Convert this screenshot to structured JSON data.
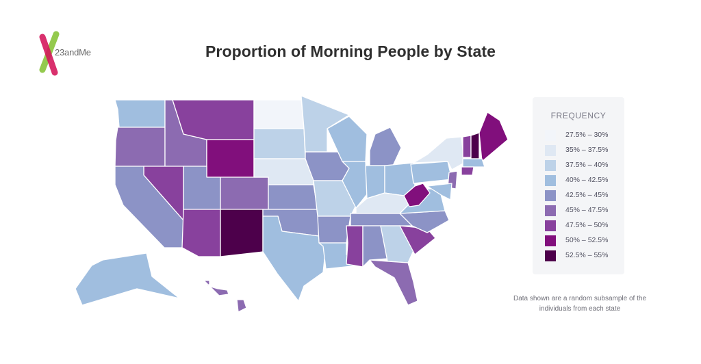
{
  "brand": {
    "name": "23andMe",
    "colors": {
      "green": "#8cc63f",
      "pink": "#d4145a"
    }
  },
  "title": "Proportion of Morning People by State",
  "legend": {
    "title": "FREQUENCY",
    "bins": [
      {
        "label": "27.5% – 30%",
        "color": "#f2f5fa"
      },
      {
        "label": "35% – 37.5%",
        "color": "#dfe8f3"
      },
      {
        "label": "37.5% – 40%",
        "color": "#bdd2e8"
      },
      {
        "label": "40% – 42.5%",
        "color": "#a0bedf"
      },
      {
        "label": "42.5% – 45%",
        "color": "#8c93c6"
      },
      {
        "label": "45% – 47.5%",
        "color": "#8c6bb1"
      },
      {
        "label": "47.5% – 50%",
        "color": "#88419d"
      },
      {
        "label": "50% – 52.5%",
        "color": "#810f7c"
      },
      {
        "label": "52.5% – 55%",
        "color": "#4d004b"
      }
    ]
  },
  "note": "Data shown are a random subsample of the individuals from each state",
  "chart_data": {
    "type": "choropleth",
    "title": "Proportion of Morning People by State",
    "legend_title": "FREQUENCY",
    "legend_placement": "right",
    "states": {
      "WA": 3,
      "OR": 5,
      "ID": 5,
      "MT": 6,
      "WY": 7,
      "NV": 6,
      "CA": 4,
      "UT": 4,
      "AZ": 6,
      "CO": 5,
      "NM": 8,
      "ND": 0,
      "SD": 2,
      "NE": 1,
      "KS": 4,
      "OK": 4,
      "TX": 3,
      "MN": 2,
      "IA": 4,
      "MO": 2,
      "AR": 4,
      "LA": 3,
      "WI": 3,
      "IL": 3,
      "MI": 4,
      "IN": 3,
      "OH": 3,
      "KY": 1,
      "TN": 4,
      "MS": 6,
      "AL": 4,
      "GA": 2,
      "FL": 5,
      "SC": 6,
      "NC": 4,
      "VA": 3,
      "WV": 7,
      "PA": 3,
      "NY": 1,
      "VT": 6,
      "NH": 8,
      "ME": 7,
      "MA": 3,
      "CT": 6,
      "NJ": 5,
      "MD": 3,
      "AK": 3,
      "HI": 5
    }
  }
}
